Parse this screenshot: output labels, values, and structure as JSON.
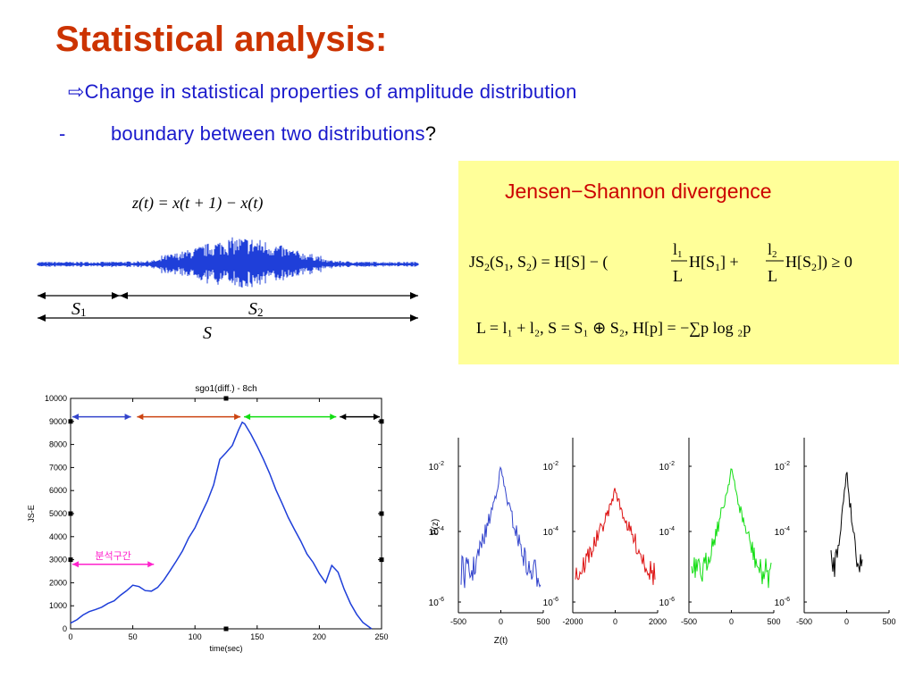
{
  "slide": {
    "title": "Statistical analysis:",
    "bullet1_arrow": "⇨",
    "bullet1": "Change in statistical properties of amplitude distribution",
    "bullet2_dash": "-",
    "bullet2": "boundary between two distributions",
    "bullet2_q": "?"
  },
  "equations": {
    "z_def": "z(t) = x(t + 1) − x(t)",
    "s1": "S",
    "s1_sub": "1",
    "s2": "S",
    "s2_sub": "2",
    "s": "S"
  },
  "jsbox": {
    "title": "Jensen−Shannon divergence",
    "eq1_left": "JS",
    "eq1_sub2": "2",
    "eq1_args": "(S",
    "eq1_args2": ", S",
    "eq1_args3": ") = H[S] − (",
    "frac1_num": "l",
    "frac1_num_sub": "1",
    "frac1_den": "L",
    "eq1_mid": "H[S",
    "eq1_mid2": "] +",
    "frac2_num": "l",
    "frac2_num_sub": "2",
    "frac2_den": "L",
    "eq1_end": "H[S",
    "eq1_end2": "]) ≥ 0",
    "eq2": "L = l₁ + l₂,    S = S₁ ⊕ S₂,    H[p] = −∑p log ₂p"
  },
  "colors": {
    "title": "#cc3300",
    "bullet": "#1a1acc",
    "box": "#ffff99",
    "js_title": "#cc0000",
    "curve": "#1f3fd9",
    "seg1": "#3344cc",
    "seg2": "#cc4411",
    "seg3": "#11dd11",
    "seg4": "#000000",
    "analysis": "#ff22cc"
  },
  "chart_data": [
    {
      "type": "line",
      "title": "sgo1(diff.) - 8ch",
      "xlabel": "time(sec)",
      "ylabel": "JS-E",
      "xlim": [
        0,
        250
      ],
      "ylim": [
        0,
        10000
      ],
      "xticks": [
        0,
        50,
        100,
        150,
        200,
        250
      ],
      "yticks": [
        0,
        1000,
        2000,
        3000,
        4000,
        5000,
        6000,
        7000,
        8000,
        9000,
        10000
      ],
      "series": [
        {
          "x": [
            0,
            5,
            10,
            15,
            20,
            25,
            30,
            35,
            40,
            45,
            50,
            55,
            60,
            65,
            70,
            75,
            80,
            85,
            90,
            95,
            100,
            105,
            110,
            115,
            120,
            125,
            130,
            135,
            138,
            140,
            145,
            150,
            155,
            160,
            165,
            170,
            175,
            180,
            185,
            190,
            195,
            200,
            205,
            210,
            215,
            220,
            225,
            230,
            235,
            242
          ],
          "y": [
            250,
            450,
            600,
            750,
            850,
            980,
            1100,
            1250,
            1450,
            1700,
            1950,
            1800,
            1650,
            1600,
            1750,
            2100,
            2500,
            2900,
            3400,
            3900,
            4400,
            5000,
            5600,
            6300,
            7400,
            7700,
            7950,
            8600,
            9000,
            8950,
            8500,
            7900,
            7300,
            6700,
            6000,
            5400,
            4800,
            4300,
            3800,
            3300,
            2900,
            2400,
            2000,
            2750,
            2450,
            1700,
            1100,
            600,
            300,
            0
          ]
        }
      ],
      "segments": [
        [
          0,
          50
        ],
        [
          52,
          138
        ],
        [
          138,
          215
        ],
        [
          215,
          250
        ]
      ],
      "annotation": "분석구간",
      "annotation_range": [
        0,
        67
      ]
    },
    {
      "type": "line",
      "ylabel": "P(z)",
      "xlabel": "Z(t)",
      "yscale": "log",
      "yticks": [
        "10-2",
        "10-4",
        "10-6"
      ],
      "panels": [
        {
          "xticks": [
            "-500",
            "0",
            "500"
          ]
        },
        {
          "xticks": [
            "-2000",
            "0",
            "2000"
          ]
        },
        {
          "xticks": [
            "-500",
            "0",
            "500"
          ]
        },
        {
          "xticks": [
            "-500",
            "0",
            "500"
          ]
        }
      ]
    }
  ]
}
